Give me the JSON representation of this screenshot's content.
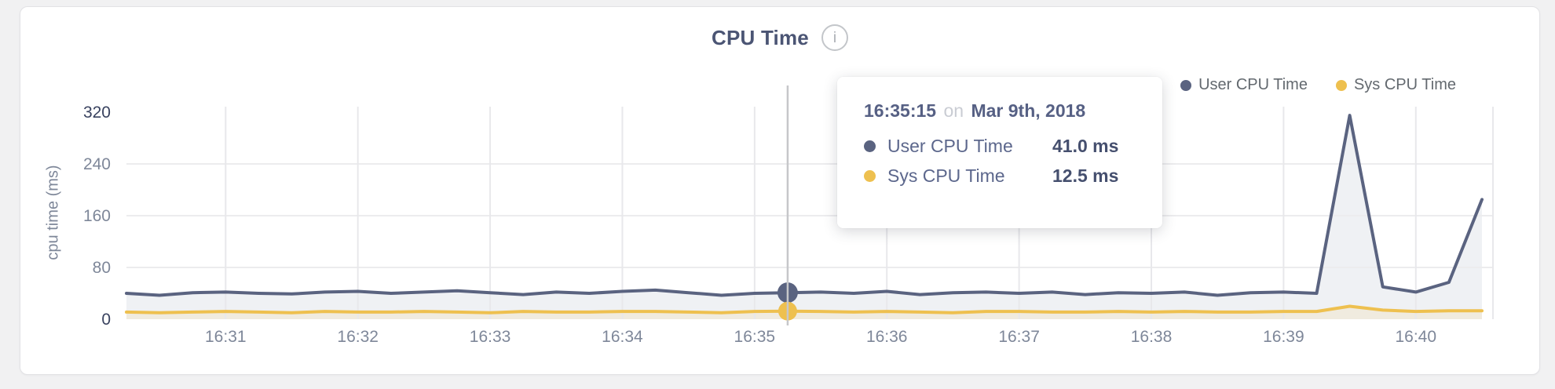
{
  "card": {
    "title": "CPU Time",
    "info_icon_glyph": "i"
  },
  "legend": {
    "items": [
      {
        "label": "User CPU Time",
        "color": "#5a6380"
      },
      {
        "label": "Sys CPU Time",
        "color": "#eec04f"
      }
    ]
  },
  "tooltip": {
    "time": "16:35:15",
    "conjunction": "on",
    "date": "Mar 9th, 2018",
    "rows": [
      {
        "label": "User CPU Time",
        "value": "41.0 ms",
        "color": "#5a6380"
      },
      {
        "label": "Sys CPU Time",
        "value": "12.5 ms",
        "color": "#eec04f"
      }
    ]
  },
  "chart_data": {
    "type": "area",
    "title": "CPU Time",
    "xlabel": "",
    "ylabel": "cpu time (ms)",
    "ylim": [
      0,
      320
    ],
    "yticks": [
      0,
      80,
      160,
      240,
      320
    ],
    "xticks": [
      "16:31",
      "16:32",
      "16:33",
      "16:34",
      "16:35",
      "16:36",
      "16:37",
      "16:38",
      "16:39",
      "16:40"
    ],
    "x_range": [
      "16:30:15",
      "16:40:35"
    ],
    "grid": true,
    "legend_position": "top-right",
    "x": [
      "16:30:15",
      "16:30:30",
      "16:30:45",
      "16:31:00",
      "16:31:15",
      "16:31:30",
      "16:31:45",
      "16:32:00",
      "16:32:15",
      "16:32:30",
      "16:32:45",
      "16:33:00",
      "16:33:15",
      "16:33:30",
      "16:33:45",
      "16:34:00",
      "16:34:15",
      "16:34:30",
      "16:34:45",
      "16:35:00",
      "16:35:15",
      "16:35:30",
      "16:35:45",
      "16:36:00",
      "16:36:15",
      "16:36:30",
      "16:36:45",
      "16:37:00",
      "16:37:15",
      "16:37:30",
      "16:37:45",
      "16:38:00",
      "16:38:15",
      "16:38:30",
      "16:38:45",
      "16:39:00",
      "16:39:15",
      "16:39:30",
      "16:39:45",
      "16:40:00",
      "16:40:15",
      "16:40:30"
    ],
    "series": [
      {
        "name": "User CPU Time",
        "color": "#5a6380",
        "fill": "#eff1f4",
        "values": [
          40,
          37,
          41,
          42,
          40,
          39,
          42,
          43,
          40,
          42,
          44,
          41,
          38,
          42,
          40,
          43,
          45,
          41,
          37,
          40,
          41,
          42,
          40,
          43,
          38,
          41,
          42,
          40,
          42,
          38,
          41,
          40,
          42,
          37,
          41,
          42,
          40,
          315,
          50,
          42,
          57,
          185
        ]
      },
      {
        "name": "Sys CPU Time",
        "color": "#eec04f",
        "fill": "#f0ebdf",
        "values": [
          11,
          10,
          11,
          12,
          11,
          10,
          12,
          11,
          11,
          12,
          11,
          10,
          12,
          11,
          11,
          12,
          12,
          11,
          10,
          12,
          12.5,
          12,
          11,
          12,
          11,
          10,
          12,
          12,
          11,
          11,
          12,
          11,
          12,
          11,
          11,
          12,
          12,
          20,
          14,
          12,
          13,
          13
        ]
      }
    ],
    "hover": {
      "time": "16:35:15",
      "index": 20,
      "values": [
        "41.0 ms",
        "12.5 ms"
      ]
    }
  }
}
